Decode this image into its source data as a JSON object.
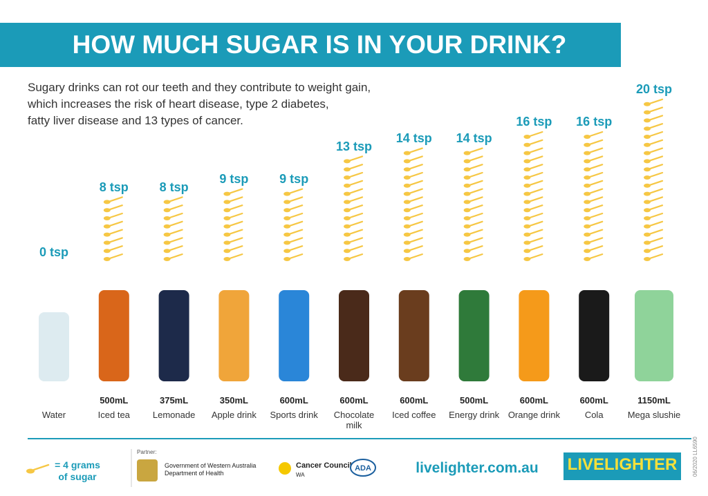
{
  "chart_data": {
    "type": "pictograph",
    "title": "HOW MUCH SUGAR IS IN YOUR DRINK?",
    "subtitle": [
      "Sugary drinks can rot our teeth and they contribute to weight gain,",
      "which increases the risk of heart disease, type 2 diabetes,",
      "fatty liver disease and 13 types of cancer."
    ],
    "categories": [
      "Water",
      "Iced tea",
      "Lemonade",
      "Apple drink",
      "Sports drink",
      "Chocolate milk",
      "Iced coffee",
      "Energy drink",
      "Orange drink",
      "Cola",
      "Mega slushie"
    ],
    "sizes": [
      null,
      "500mL",
      "375mL",
      "350mL",
      "600mL",
      "600mL",
      "600mL",
      "500mL",
      "600mL",
      "600mL",
      "1150mL"
    ],
    "values": [
      0,
      8,
      8,
      9,
      9,
      13,
      14,
      14,
      16,
      16,
      20
    ],
    "value_labels": [
      "0 tsp",
      "8 tsp",
      "8 tsp",
      "9 tsp",
      "9 tsp",
      "13 tsp",
      "14 tsp",
      "14 tsp",
      "16 tsp",
      "16 tsp",
      "20 tsp"
    ],
    "color": "#f6c744",
    "legend": [
      "= 4 grams",
      "of sugar"
    ]
  },
  "footer": {
    "partner": "Partner:",
    "gov": "Government of Western Australia",
    "dept": "Department of Health",
    "cancer": "Cancer Council",
    "wa": "WA",
    "ada": "ADA",
    "url": "livelighter.com.au",
    "brand": "LIVELIGHTER",
    "code": "06/2020 LL6590"
  }
}
